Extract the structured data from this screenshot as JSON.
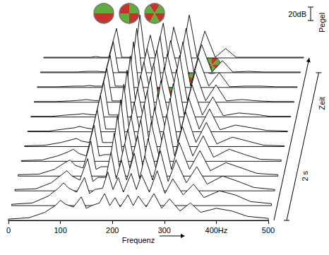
{
  "chart_data": {
    "type": "waterfall",
    "x_label": "Frequenz",
    "xlim": [
      0,
      500
    ],
    "xticks": [
      0,
      100,
      200,
      300,
      {
        "value": 400,
        "label": "400Hz"
      },
      500
    ],
    "ylim": [
      0,
      80
    ],
    "tick_labels": "x",
    "grid": false,
    "zlim": [
      0,
      2.2
    ],
    "z_label": "Zeit",
    "time_scale": {
      "value": 2,
      "label": "2 s"
    },
    "level_label": "Pegel",
    "level_scale": {
      "value": 20,
      "label": "20dB"
    },
    "x": [
      0,
      40,
      70,
      90,
      100,
      110,
      125,
      140,
      150,
      160,
      175,
      185,
      195,
      205,
      215,
      230,
      240,
      250,
      265,
      280,
      295,
      310,
      330,
      350,
      370,
      400,
      430,
      460,
      500
    ],
    "slices": [
      {
        "time": 0.0,
        "values": [
          2,
          4,
          12,
          22,
          30,
          24,
          20,
          35,
          18,
          22,
          26,
          40,
          22,
          34,
          20,
          38,
          22,
          36,
          20,
          40,
          18,
          32,
          14,
          26,
          12,
          18,
          14,
          6,
          3
        ]
      },
      {
        "time": 0.2,
        "values": [
          2,
          4,
          14,
          26,
          34,
          26,
          20,
          42,
          18,
          24,
          26,
          50,
          24,
          42,
          20,
          48,
          24,
          46,
          20,
          52,
          18,
          40,
          16,
          32,
          12,
          22,
          16,
          6,
          3
        ]
      },
      {
        "time": 0.4,
        "values": [
          2,
          3,
          12,
          24,
          30,
          22,
          16,
          48,
          14,
          20,
          20,
          58,
          18,
          46,
          16,
          56,
          18,
          52,
          16,
          60,
          14,
          46,
          12,
          36,
          10,
          22,
          14,
          5,
          2
        ]
      },
      {
        "time": 0.6,
        "values": [
          2,
          3,
          10,
          20,
          24,
          16,
          12,
          52,
          10,
          14,
          14,
          64,
          14,
          48,
          12,
          60,
          14,
          56,
          12,
          66,
          10,
          50,
          10,
          38,
          8,
          20,
          12,
          4,
          2
        ]
      },
      {
        "time": 0.8,
        "values": [
          1,
          2,
          8,
          14,
          18,
          12,
          8,
          54,
          8,
          10,
          10,
          68,
          10,
          48,
          8,
          62,
          10,
          58,
          8,
          70,
          8,
          52,
          8,
          38,
          6,
          18,
          10,
          3,
          2
        ]
      },
      {
        "time": 1.0,
        "values": [
          1,
          2,
          6,
          10,
          12,
          8,
          6,
          55,
          6,
          6,
          6,
          70,
          6,
          46,
          6,
          62,
          6,
          58,
          6,
          72,
          6,
          52,
          6,
          36,
          4,
          14,
          8,
          2,
          1
        ]
      },
      {
        "time": 1.2,
        "values": [
          1,
          1,
          4,
          6,
          8,
          6,
          4,
          54,
          4,
          4,
          4,
          71,
          4,
          44,
          4,
          61,
          4,
          56,
          4,
          72,
          4,
          50,
          4,
          34,
          3,
          10,
          6,
          2,
          1
        ]
      },
      {
        "time": 1.4,
        "values": [
          1,
          1,
          3,
          4,
          5,
          4,
          3,
          52,
          3,
          3,
          3,
          70,
          3,
          42,
          3,
          60,
          3,
          54,
          3,
          71,
          3,
          48,
          3,
          30,
          2,
          6,
          4,
          1,
          1
        ]
      },
      {
        "time": 1.6,
        "values": [
          1,
          1,
          2,
          3,
          4,
          3,
          2,
          50,
          2,
          2,
          2,
          69,
          2,
          40,
          2,
          58,
          2,
          52,
          2,
          70,
          2,
          46,
          2,
          26,
          2,
          4,
          2,
          1,
          1
        ]
      },
      {
        "time": 1.8,
        "values": [
          1,
          1,
          2,
          2,
          3,
          2,
          2,
          48,
          2,
          2,
          2,
          68,
          2,
          38,
          2,
          56,
          2,
          50,
          2,
          68,
          2,
          44,
          2,
          22,
          1,
          2,
          2,
          1,
          1
        ]
      },
      {
        "time": 2.0,
        "values": [
          1,
          1,
          1,
          2,
          2,
          2,
          1,
          46,
          1,
          1,
          1,
          66,
          1,
          36,
          1,
          54,
          1,
          48,
          1,
          66,
          1,
          42,
          1,
          18,
          1,
          2,
          1,
          1,
          1
        ]
      },
      {
        "time": 2.2,
        "values": [
          1,
          1,
          1,
          1,
          2,
          1,
          1,
          44,
          1,
          1,
          1,
          64,
          1,
          34,
          1,
          52,
          1,
          46,
          1,
          64,
          1,
          40,
          1,
          14,
          1,
          1,
          1,
          1,
          1
        ]
      }
    ]
  }
}
